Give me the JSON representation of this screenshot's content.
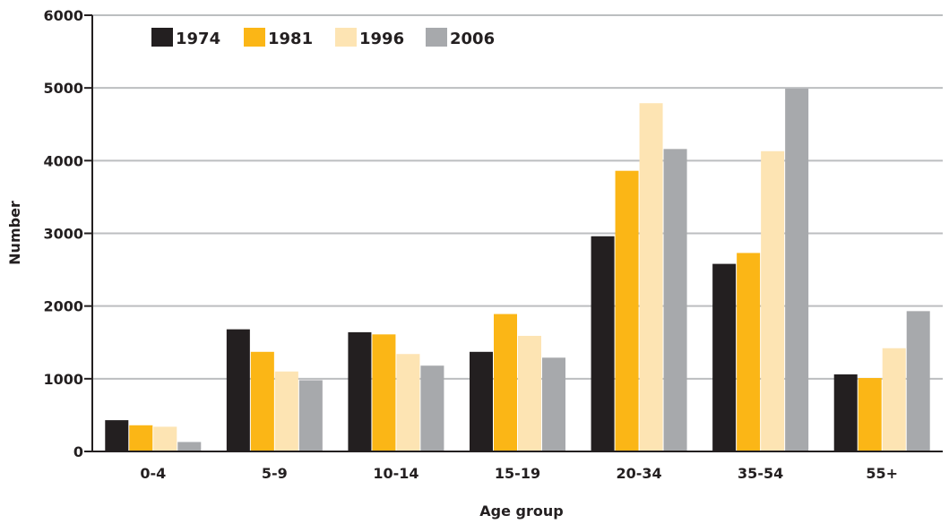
{
  "chart_data": {
    "type": "bar",
    "title": "",
    "xlabel": "Age group",
    "ylabel": "Number",
    "ylim": [
      0,
      6000
    ],
    "yticks": [
      0,
      1000,
      2000,
      3000,
      4000,
      5000,
      6000
    ],
    "grid": true,
    "legend_position": "top-left",
    "categories": [
      "0-4",
      "5-9",
      "10-14",
      "15-19",
      "20-34",
      "35-54",
      "55+"
    ],
    "series": [
      {
        "name": "1974",
        "color": "#231f20",
        "values": [
          430,
          1680,
          1640,
          1370,
          2960,
          2580,
          1060
        ]
      },
      {
        "name": "1981",
        "color": "#fbb616",
        "values": [
          360,
          1370,
          1610,
          1890,
          3860,
          2730,
          1010
        ]
      },
      {
        "name": "1996",
        "color": "#fde4b3",
        "values": [
          340,
          1100,
          1340,
          1590,
          4790,
          4130,
          1420
        ]
      },
      {
        "name": "2006",
        "color": "#a7a9ac",
        "values": [
          130,
          980,
          1180,
          1290,
          4160,
          4990,
          1930
        ]
      }
    ]
  }
}
